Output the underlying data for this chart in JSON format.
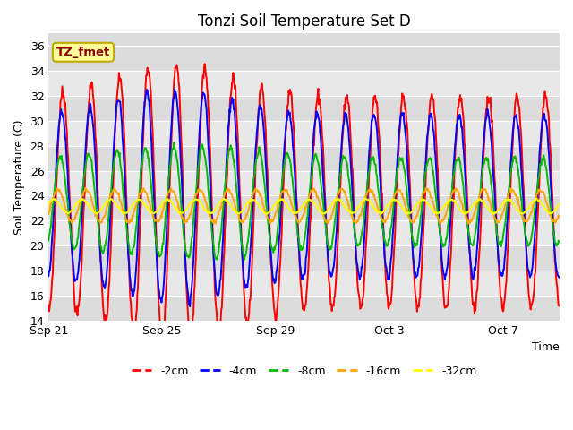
{
  "title": "Tonzi Soil Temperature Set D",
  "xlabel": "Time",
  "ylabel": "Soil Temperature (C)",
  "ylim": [
    14,
    37
  ],
  "yticks": [
    14,
    16,
    18,
    20,
    22,
    24,
    26,
    28,
    30,
    32,
    34,
    36
  ],
  "xtick_positions": [
    0,
    4,
    8,
    12,
    16
  ],
  "xtick_labels": [
    "Sep 21",
    "Sep 25",
    "Sep 29",
    "Oct 3",
    "Oct 7"
  ],
  "colors": {
    "-2cm": "#FF0000",
    "-4cm": "#0000FF",
    "-8cm": "#00BB00",
    "-16cm": "#FFA500",
    "-32cm": "#FFFF00"
  },
  "legend_labels": [
    "-2cm",
    "-4cm",
    "-8cm",
    "-16cm",
    "-32cm"
  ],
  "annotation_text": "TZ_fmet",
  "annotation_bg": "#FFFF99",
  "annotation_border": "#BBAA00",
  "line_width": 1.4,
  "title_fontsize": 12,
  "axis_label_fontsize": 9,
  "tick_fontsize": 9,
  "legend_fontsize": 9,
  "n_days": 18,
  "pts_per_day": 48,
  "band_colors": [
    "#DCDCDC",
    "#E8E8E8"
  ],
  "grid_color": "#FFFFFF"
}
